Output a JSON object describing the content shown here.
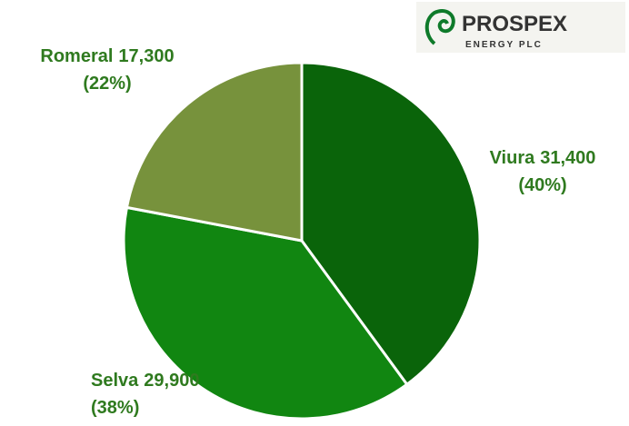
{
  "logo": {
    "name": "PROSPEX",
    "subtitle": "ENERGY PLC"
  },
  "chart_data": {
    "type": "pie",
    "categories": [
      "Viura",
      "Selva",
      "Romeral"
    ],
    "values": [
      31400,
      29900,
      17300
    ],
    "value_labels": [
      "31,400",
      "29,900",
      "17,300"
    ],
    "percents": [
      40,
      38,
      22
    ],
    "percent_labels": [
      "(40%)",
      "(38%)",
      "(22%)"
    ],
    "colors": [
      "#0a640a",
      "#118611",
      "#77923c"
    ]
  }
}
